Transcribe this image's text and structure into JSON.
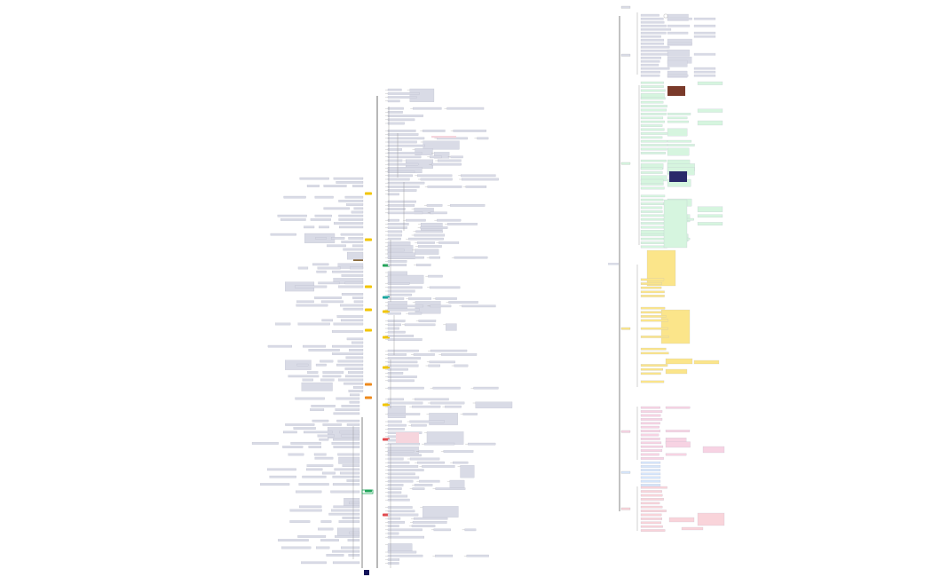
{
  "left_map": {
    "root_label": "",
    "colors": {
      "spine": "#333333",
      "branch_line": "#8a8a8a",
      "node_default": "#d9dbe6",
      "node_border": "#a9abbd",
      "node_yellow": "#f2c500",
      "node_green": "#21a55a",
      "node_teal": "#19a7a0",
      "node_orange": "#ee8a1d",
      "node_red": "#e5484d",
      "node_pink": "#f6d5dd",
      "node_brown": "#8a6a3a",
      "node_navy": "#14145a"
    }
  },
  "right_map": {
    "root_label": "",
    "colors": {
      "section_gray": "#d9dbe6",
      "section_green": "#d6f5df",
      "section_yellow": "#fbe58a",
      "section_pink": "#f7d3e3",
      "section_blue": "#d6e6fb",
      "section_red": "#f9d4da"
    }
  }
}
